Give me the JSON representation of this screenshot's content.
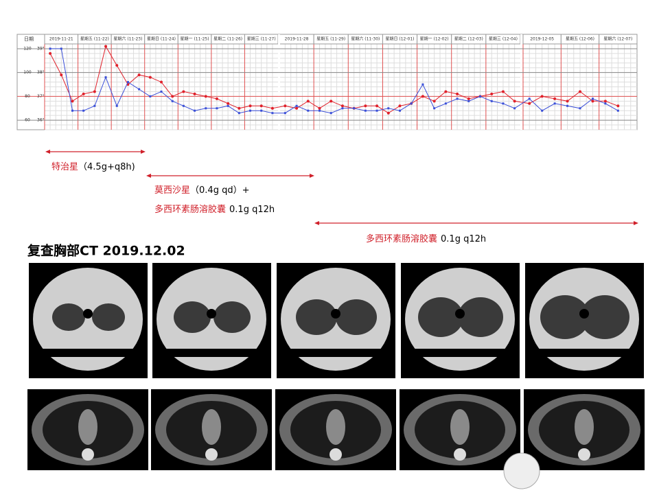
{
  "vitals_chart": {
    "type": "line",
    "date_label": "日期",
    "columns": [
      "2019-11-21",
      "星期五 (11-22)",
      "星期六 (11-23)",
      "星期日 (11-24)",
      "星期一 (11-25)",
      "星期二 (11-26)",
      "星期三 (11-27)",
      "2019-11-28",
      "星期五 (11-29)",
      "星期六 (11-30)",
      "星期日 (12-01)",
      "星期一 (12-02)",
      "星期二 (12-03)",
      "星期三 (12-04)",
      "2019-12-05",
      "星期五 (12-06)",
      "星期六 (12-07)"
    ],
    "ylim": [
      35.6,
      39.2
    ],
    "yticks": [
      {
        "value": 39,
        "label": "39°"
      },
      {
        "value": 38,
        "label": "38°"
      },
      {
        "value": 37,
        "label": "37°"
      },
      {
        "value": 36,
        "label": "36°"
      }
    ],
    "y2lim": [
      52,
      124
    ],
    "y2ticks": [
      120,
      100,
      80,
      60
    ],
    "series": [
      {
        "color": "#e0202a",
        "values": [
          38.8,
          37.9,
          36.8,
          37.1,
          37.2,
          39.1,
          38.3,
          37.5,
          37.9,
          37.8,
          37.6,
          37.0,
          37.2,
          37.1,
          37.0,
          36.9,
          36.7,
          36.5,
          36.6,
          36.6,
          36.5,
          36.6,
          36.5,
          36.8,
          36.5,
          36.8,
          36.6,
          36.5,
          36.6,
          36.6,
          36.3,
          36.6,
          36.7,
          37.0,
          36.8,
          37.2,
          37.1,
          36.9,
          37.0,
          37.1,
          37.2,
          36.8,
          36.7,
          37.0,
          36.9,
          36.8,
          37.2,
          36.8,
          36.8,
          36.6,
          null
        ]
      },
      {
        "color": "#3a4fd8",
        "values": [
          39.0,
          39.0,
          36.4,
          36.4,
          36.6,
          37.8,
          36.6,
          37.6,
          37.3,
          37.0,
          37.2,
          36.8,
          36.6,
          36.4,
          36.5,
          36.5,
          36.6,
          36.3,
          36.4,
          36.4,
          36.3,
          36.3,
          36.6,
          36.4,
          36.4,
          36.3,
          36.5,
          36.5,
          36.4,
          36.4,
          36.5,
          36.4,
          36.7,
          37.5,
          36.5,
          36.7,
          36.9,
          36.8,
          37.0,
          36.8,
          36.7,
          36.5,
          36.9,
          36.4,
          36.7,
          36.6,
          36.5,
          36.9,
          36.7,
          36.4,
          null
        ]
      }
    ]
  },
  "regimens": [
    {
      "drug": "特治星",
      "dose": "（4.5g+q8h)"
    },
    {
      "drug": "莫西沙星",
      "dose": "（0.4g qd）+",
      "drug2": "多西环素肠溶胶囊",
      "dose2": "0.1g q12h"
    },
    {
      "drug": "多西环素肠溶胶囊",
      "dose": "0.1g q12h"
    }
  ],
  "ct_title": "复查胸部CT  2019.12.02"
}
